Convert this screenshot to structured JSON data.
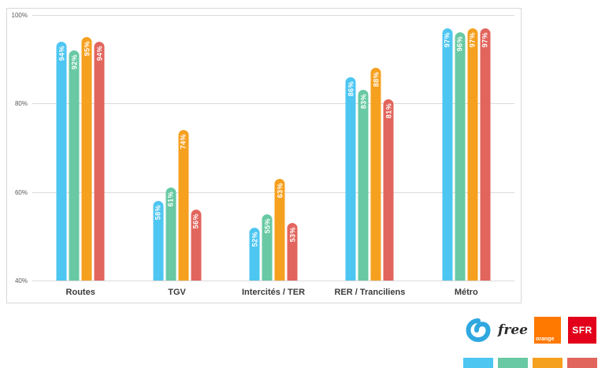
{
  "chart_data": {
    "type": "bar",
    "title": "",
    "categories": [
      "Routes",
      "TGV",
      "Intercités / TER",
      "RER / Tranciliens",
      "Métro"
    ],
    "series": [
      {
        "name": "Bouygues Telecom",
        "color": "#4dc6f2",
        "values": [
          94,
          58,
          52,
          86,
          97
        ]
      },
      {
        "name": "Free",
        "color": "#68c9a4",
        "values": [
          92,
          61,
          55,
          83,
          96
        ]
      },
      {
        "name": "Orange",
        "color": "#f6a01f",
        "values": [
          95,
          74,
          63,
          88,
          97
        ]
      },
      {
        "name": "SFR",
        "color": "#e2655d",
        "values": [
          94,
          56,
          53,
          81,
          97
        ]
      }
    ],
    "ylim": [
      40,
      100
    ],
    "yticks": [
      100,
      80,
      60,
      40
    ],
    "ytick_labels": [
      "100%",
      "80%",
      "60%",
      "40%"
    ],
    "value_suffix": "%",
    "grid": true,
    "legend_position": "bottom-right"
  },
  "legend": {
    "brands": [
      {
        "id": "bouygues",
        "label": ""
      },
      {
        "id": "free",
        "label": "free"
      },
      {
        "id": "orange",
        "label": "orange"
      },
      {
        "id": "sfr",
        "label": "SFR"
      }
    ]
  }
}
